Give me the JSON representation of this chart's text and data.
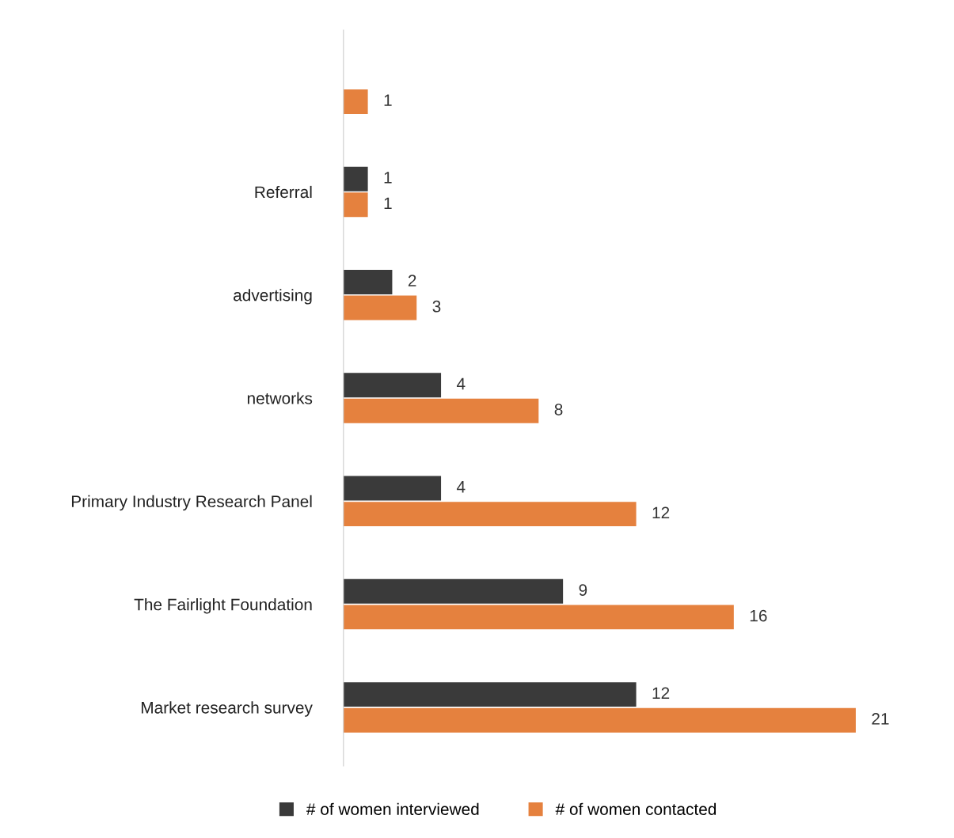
{
  "chart_data": {
    "type": "bar",
    "orientation": "horizontal",
    "categories": [
      null,
      "Referral",
      "advertising",
      "networks",
      "Primary Industry Research Panel",
      "The Fairlight Foundation",
      "Market research survey"
    ],
    "series": [
      {
        "name": "# of women interviewed",
        "color": "#3a3a3a",
        "values": [
          null,
          1,
          2,
          4,
          4,
          9,
          12
        ]
      },
      {
        "name": "# of women contacted",
        "color": "#e5813e",
        "values": [
          1,
          1,
          3,
          8,
          12,
          16,
          21
        ]
      }
    ],
    "data_labels": true,
    "legend": "bottom",
    "grid": false
  }
}
